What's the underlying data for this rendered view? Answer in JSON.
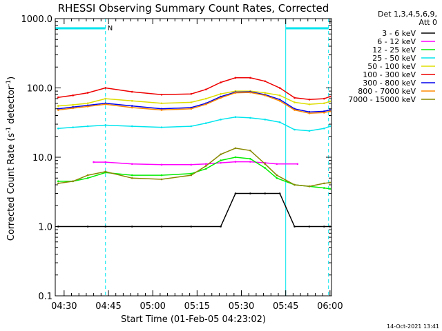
{
  "colors": {
    "background": "#ffffff",
    "axis": "#000000",
    "marker": "#00e5ee",
    "legend_line": "#000000"
  },
  "chart_data": {
    "type": "line",
    "title": "RHESSI Observing Summary Count Rates, Corrected",
    "xlabel": "Start Time (01-Feb-05 04:23:02)",
    "ylabel_main": "Corrected Count Rate (s",
    "ylabel_sup1": "-1",
    "ylabel_mid": " detector",
    "ylabel_sup2": "-1",
    "ylabel_end": ")",
    "yscale": "log",
    "ylim": [
      0.1,
      1000
    ],
    "xlim_minutes": [
      4.0,
      97.5
    ],
    "xtick_labels": [
      {
        "label": "04:30",
        "m": 7
      },
      {
        "label": "04:45",
        "m": 22
      },
      {
        "label": "05:00",
        "m": 37
      },
      {
        "label": "05:15",
        "m": 52
      },
      {
        "label": "05:30",
        "m": 67
      },
      {
        "label": "05:45",
        "m": 82
      },
      {
        "label": "06:00",
        "m": 97
      }
    ],
    "ytick_labels": [
      {
        "label": "1000.0",
        "v": 1000
      },
      {
        "label": "100.0",
        "v": 100
      },
      {
        "label": "10.0",
        "v": 10
      },
      {
        "label": "1.0",
        "v": 1
      },
      {
        "label": "0.1",
        "v": 0.1
      }
    ],
    "legend_header": [
      "Det 1,3,4,5,6,9,",
      "Att 0"
    ],
    "legend_placement": "right",
    "day_night_marks_min": [
      4.0,
      21.0,
      82.0,
      96.5
    ],
    "bars": [
      [
        4.0,
        21.0
      ],
      [
        82.0,
        96.5
      ]
    ],
    "bar_label": "N",
    "series": [
      {
        "name": "3 - 6 keV",
        "color": "#000000",
        "x": [
          5,
          15,
          21,
          30,
          40,
          50,
          60,
          65,
          70,
          75,
          80,
          85,
          90,
          95,
          97
        ],
        "y": [
          1.0,
          1.0,
          1.0,
          1.0,
          1.0,
          1.0,
          1.0,
          3.0,
          3.0,
          3.0,
          3.0,
          1.0,
          1.0,
          1.0,
          1.0
        ]
      },
      {
        "name": "6 - 12 keV",
        "color": "#ff00ff",
        "x": [
          17,
          21,
          30,
          40,
          50,
          55,
          60,
          65,
          70,
          75,
          79,
          86
        ],
        "y": [
          8.5,
          8.5,
          8.0,
          7.8,
          7.8,
          8.0,
          8.3,
          8.6,
          8.6,
          8.3,
          8.0,
          8.0
        ]
      },
      {
        "name": "12 - 25 keV",
        "color": "#00ee00",
        "x": [
          5,
          10,
          15,
          21,
          30,
          40,
          50,
          55,
          60,
          65,
          70,
          75,
          79,
          85,
          90,
          95,
          97
        ],
        "y": [
          4.5,
          4.5,
          5.0,
          6.0,
          5.5,
          5.5,
          5.8,
          6.8,
          9.0,
          10.0,
          9.5,
          7.0,
          5.0,
          4.0,
          3.8,
          3.6,
          3.5
        ]
      },
      {
        "name": "25 - 50 keV",
        "color": "#00e5ee",
        "x": [
          5,
          10,
          15,
          21,
          30,
          40,
          50,
          55,
          60,
          65,
          70,
          75,
          80,
          85,
          90,
          95,
          97
        ],
        "y": [
          26,
          27,
          28,
          29,
          28,
          27,
          28,
          31,
          35,
          38,
          37,
          35,
          32,
          25,
          24,
          26,
          28
        ]
      },
      {
        "name": "50 - 100 keV",
        "color": "#dddd00",
        "x": [
          5,
          10,
          15,
          21,
          30,
          40,
          50,
          55,
          60,
          65,
          70,
          75,
          80,
          85,
          90,
          95,
          97
        ],
        "y": [
          55,
          57,
          60,
          70,
          65,
          60,
          62,
          70,
          82,
          90,
          90,
          85,
          78,
          62,
          58,
          60,
          64
        ]
      },
      {
        "name": "100 - 300 keV",
        "color": "#ee0000",
        "x": [
          5,
          10,
          15,
          21,
          30,
          40,
          50,
          55,
          60,
          65,
          70,
          75,
          80,
          85,
          90,
          95,
          97
        ],
        "y": [
          73,
          78,
          85,
          100,
          88,
          80,
          82,
          95,
          120,
          140,
          140,
          125,
          100,
          72,
          68,
          70,
          75
        ]
      },
      {
        "name": "300 - 800 keV",
        "color": "#0000ee",
        "x": [
          5,
          10,
          15,
          21,
          30,
          40,
          50,
          55,
          60,
          65,
          70,
          75,
          80,
          85,
          90,
          95,
          97
        ],
        "y": [
          50,
          53,
          56,
          60,
          55,
          50,
          52,
          60,
          75,
          87,
          88,
          80,
          68,
          50,
          45,
          46,
          48
        ]
      },
      {
        "name": "800 - 7000 keV",
        "color": "#ff8800",
        "x": [
          5,
          10,
          15,
          21,
          30,
          40,
          50,
          55,
          60,
          65,
          70,
          75,
          80,
          85,
          90,
          95,
          97
        ],
        "y": [
          48,
          51,
          54,
          58,
          52,
          48,
          50,
          58,
          72,
          85,
          86,
          78,
          65,
          48,
          43,
          44,
          46
        ]
      },
      {
        "name": "7000 - 15000 keV",
        "color": "#888800",
        "x": [
          5,
          10,
          15,
          21,
          30,
          40,
          50,
          55,
          60,
          65,
          70,
          75,
          79,
          85,
          90,
          95,
          97
        ],
        "y": [
          4.2,
          4.5,
          5.5,
          6.2,
          5.0,
          4.8,
          5.5,
          7.5,
          11.0,
          13.5,
          12.5,
          8.0,
          5.5,
          4.0,
          3.8,
          4.2,
          4.3
        ]
      }
    ]
  },
  "footer_timestamp": "14-Oct-2021 13:41"
}
